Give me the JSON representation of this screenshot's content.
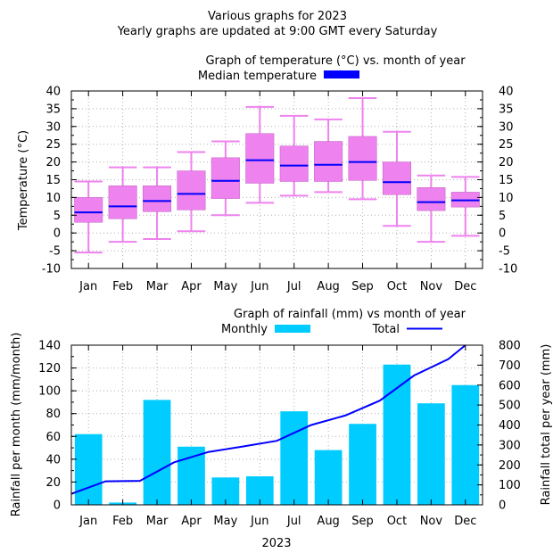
{
  "header": {
    "line1": "Various graphs for 2023",
    "line2": "Yearly graphs are updated at 9:00 GMT every Saturday"
  },
  "colors": {
    "box_fill": "#ee82ee",
    "whisker": "#ee82ee",
    "median": "#0000ff",
    "rain_bar": "#00ccff",
    "total_line": "#0000ff"
  },
  "chart_data": [
    {
      "type": "box",
      "title": "Graph of temperature (°C) vs. month of year",
      "ylabel": "Temperature (°C)",
      "ylim": [
        -10,
        40
      ],
      "yticks": [
        "-10",
        "-5",
        "0",
        "5",
        "10",
        "15",
        "20",
        "25",
        "30",
        "35",
        "40"
      ],
      "y2ticks": [
        "-10",
        "-5",
        "0",
        "5",
        "10",
        "15",
        "20",
        "25",
        "30",
        "35",
        "40"
      ],
      "grid": true,
      "legend": "top",
      "categories": [
        "Jan",
        "Feb",
        "Mar",
        "Apr",
        "May",
        "Jun",
        "Jul",
        "Aug",
        "Sep",
        "Oct",
        "Nov",
        "Dec"
      ],
      "series": [
        {
          "name": "Median temperature",
          "min": [
            -5.5,
            -2.5,
            -1.7,
            0.5,
            5.0,
            8.5,
            10.5,
            11.5,
            9.5,
            2.0,
            -2.5,
            -0.8
          ],
          "q1": [
            3.0,
            4.0,
            6.0,
            6.5,
            9.7,
            14.0,
            14.5,
            14.5,
            14.8,
            10.8,
            6.3,
            7.3
          ],
          "median": [
            5.8,
            7.5,
            9.0,
            11.0,
            14.7,
            20.5,
            19.0,
            19.2,
            20.0,
            14.3,
            8.7,
            9.2
          ],
          "q3": [
            10.0,
            13.3,
            13.3,
            17.5,
            21.2,
            28.0,
            24.5,
            25.8,
            27.2,
            20.0,
            12.8,
            11.5
          ],
          "max": [
            14.5,
            18.5,
            18.5,
            22.8,
            25.8,
            35.5,
            33.0,
            32.0,
            38.0,
            28.5,
            16.2,
            15.8
          ]
        }
      ]
    },
    {
      "type": "bar",
      "title": "Graph of rainfall (mm) vs month of year",
      "xlabel": "2023",
      "ylabel": "Rainfall per month (mm/month)",
      "y2label": "Rainfall total per year (mm)",
      "ylim": [
        0,
        140
      ],
      "y2lim": [
        0,
        800
      ],
      "yticks": [
        "0",
        "20",
        "40",
        "60",
        "80",
        "100",
        "120",
        "140"
      ],
      "y2ticks": [
        "0",
        "100",
        "200",
        "300",
        "400",
        "500",
        "600",
        "700",
        "800"
      ],
      "grid": true,
      "legend": "top",
      "categories": [
        "Jan",
        "Feb",
        "Mar",
        "Apr",
        "May",
        "Jun",
        "Jul",
        "Aug",
        "Sep",
        "Oct",
        "Nov",
        "Dec"
      ],
      "series": [
        {
          "name": "Monthly",
          "axis": "y",
          "values": [
            62,
            2,
            92,
            51,
            24,
            25,
            82,
            48,
            71,
            123,
            89,
            105
          ]
        },
        {
          "name": "Total",
          "axis": "y2",
          "type": "line",
          "x": [
            0.0,
            1.0,
            2.0,
            3.0,
            4.0,
            5.0,
            6.0,
            7.0,
            8.0,
            9.0,
            10.0,
            11.0,
            11.5
          ],
          "values": [
            55,
            118,
            120,
            213,
            265,
            292,
            321,
            400,
            448,
            522,
            648,
            730,
            807
          ]
        }
      ]
    }
  ]
}
